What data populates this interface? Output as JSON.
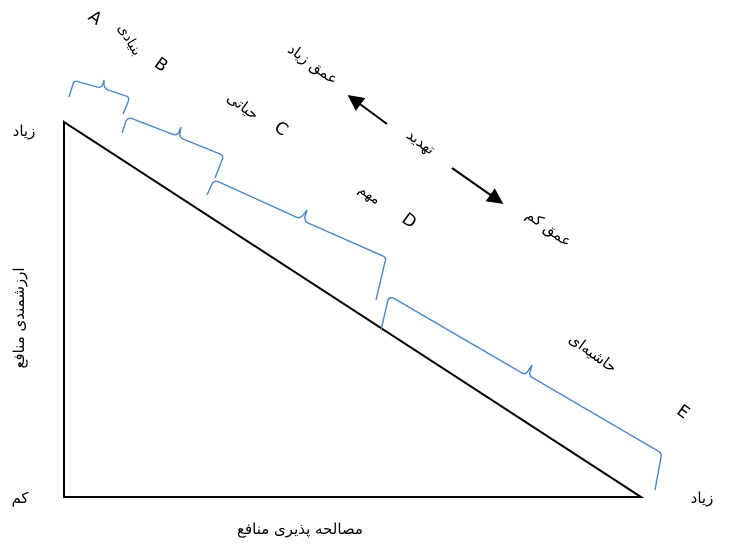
{
  "colors": {
    "line": "#000000",
    "bracket": "#4a86c8"
  },
  "axes": {
    "y_label": "ارزشمندی منافع",
    "y_high": "زیاد",
    "y_low": "کم",
    "x_label": "مصالحه پذیری منافع",
    "x_high": "زیاد"
  },
  "threat": {
    "label": "تهدید",
    "deep": "عمق زیاد",
    "shallow": "عمق کم"
  },
  "zones": [
    {
      "letter": "A",
      "name": "بنیادی"
    },
    {
      "letter": "B",
      "name": ""
    },
    {
      "letter": "C",
      "name": "حیاتی"
    },
    {
      "letter": "D",
      "name": "مهم"
    },
    {
      "letter": "E",
      "name": "حاشیه‌ای"
    }
  ]
}
